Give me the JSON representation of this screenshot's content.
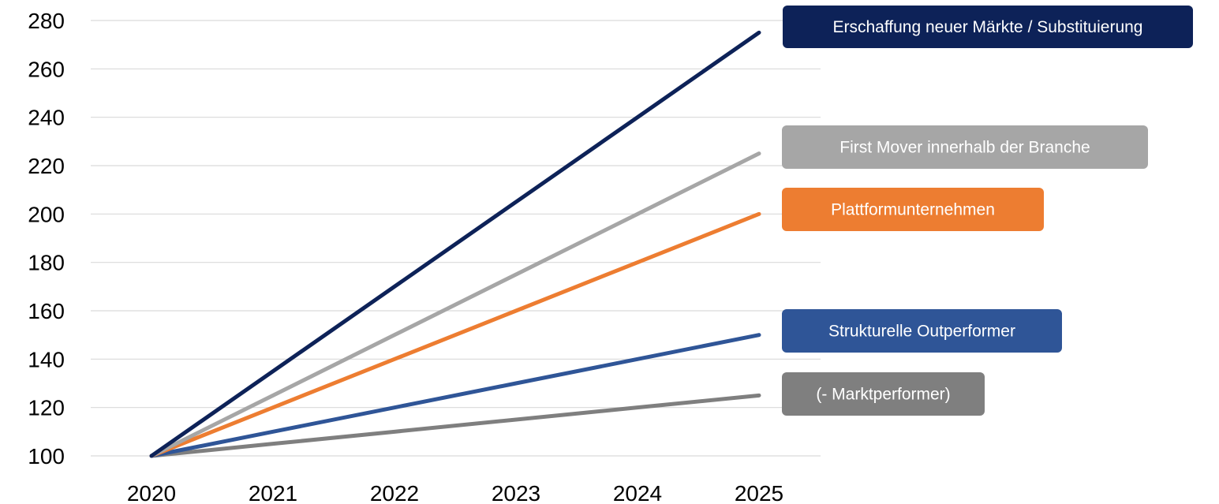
{
  "chart_data": {
    "type": "line",
    "x": [
      2020,
      2021,
      2022,
      2023,
      2024,
      2025
    ],
    "ylim": [
      100,
      280
    ],
    "yticks": [
      100,
      120,
      140,
      160,
      180,
      200,
      220,
      240,
      260,
      280
    ],
    "grid": true,
    "legend": "right",
    "series": [
      {
        "name": "Erschaffung neuer Märkte / Substituierung",
        "color": "#0d2258",
        "values": [
          100,
          135,
          170,
          205,
          240,
          275
        ]
      },
      {
        "name": "First Mover innerhalb der Branche",
        "color": "#a6a6a6",
        "values": [
          100,
          125,
          150,
          175,
          200,
          225
        ]
      },
      {
        "name": "Plattformunternehmen",
        "color": "#ed7d31",
        "values": [
          100,
          120,
          140,
          160,
          180,
          200
        ]
      },
      {
        "name": "Strukturelle Outperformer",
        "color": "#2f5597",
        "values": [
          100,
          110,
          120,
          130,
          140,
          150
        ]
      },
      {
        "name": "(- Marktperformer)",
        "color": "#7f7f7f",
        "values": [
          100,
          105,
          110,
          115,
          120,
          125
        ]
      }
    ]
  }
}
